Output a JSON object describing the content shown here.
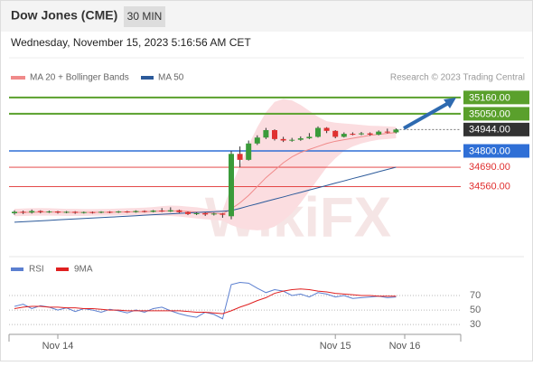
{
  "header": {
    "title": "Dow Jones (CME)",
    "timeframe": "30 MIN",
    "datetime": "Wednesday, November 15, 2023 5:16:56 AM CET"
  },
  "chart_data": [
    {
      "type": "candlestick",
      "credit": "Research © 2023 Trading Central",
      "watermark": "WikiFX",
      "up_color": "#3a9b3a",
      "down_color": "#e03030",
      "open": [
        34380,
        34390,
        34385,
        34395,
        34388,
        34392,
        34385,
        34390,
        34383,
        34388,
        34384,
        34390,
        34386,
        34392,
        34388,
        34395,
        34390,
        34398,
        34392,
        34400,
        34388,
        34375,
        34380,
        34372,
        34378,
        34360,
        34780,
        34740,
        34850,
        34890,
        34940,
        34880,
        34870,
        34875,
        34885,
        34895,
        34955,
        34935,
        34895,
        34915,
        34912,
        34918,
        34910,
        34930,
        34925,
        null
      ],
      "high": [
        34400,
        34398,
        34405,
        34400,
        34398,
        34396,
        34395,
        34394,
        34392,
        34392,
        34394,
        34394,
        34396,
        34396,
        34400,
        34400,
        34402,
        34415,
        34420,
        34405,
        34392,
        34386,
        34384,
        34384,
        34382,
        34800,
        34830,
        34870,
        34905,
        34955,
        34945,
        34895,
        34888,
        34898,
        34920,
        34965,
        34960,
        34940,
        34925,
        34925,
        34928,
        34925,
        34938,
        34950,
        34952,
        null
      ],
      "low": [
        34370,
        34375,
        34378,
        34380,
        34382,
        34378,
        34380,
        34376,
        34378,
        34378,
        34380,
        34380,
        34382,
        34383,
        34384,
        34385,
        34386,
        34388,
        34388,
        34382,
        34368,
        34368,
        34362,
        34365,
        34350,
        34340,
        34690,
        34735,
        34840,
        34880,
        34870,
        34860,
        34862,
        34868,
        34880,
        34890,
        34920,
        34885,
        34890,
        34905,
        34906,
        34902,
        34905,
        34918,
        34918,
        null
      ],
      "close": [
        34390,
        34385,
        34395,
        34388,
        34392,
        34385,
        34390,
        34383,
        34388,
        34384,
        34390,
        34386,
        34392,
        34388,
        34395,
        34390,
        34398,
        34392,
        34400,
        34388,
        34375,
        34380,
        34372,
        34378,
        34370,
        34780,
        34740,
        34850,
        34890,
        34940,
        34880,
        34870,
        34875,
        34885,
        34895,
        34955,
        34935,
        34895,
        34915,
        34912,
        34918,
        34910,
        34930,
        34925,
        34944,
        null
      ],
      "band_color": "#fbdde0",
      "band_upper": [
        34410,
        34412,
        34414,
        34415,
        34414,
        34412,
        34410,
        34410,
        34408,
        34408,
        34409,
        34410,
        34412,
        34414,
        34416,
        34418,
        34422,
        34428,
        34432,
        34430,
        34425,
        34420,
        34412,
        34405,
        34400,
        34560,
        34700,
        34840,
        34960,
        35060,
        35130,
        35150,
        35140,
        35110,
        35070,
        35030,
        35000,
        34990,
        34985,
        34980,
        34975,
        34970,
        34968,
        34965,
        34962,
        null
      ],
      "band_lower": [
        34360,
        34362,
        34363,
        34364,
        34364,
        34363,
        34362,
        34362,
        34362,
        34363,
        34364,
        34365,
        34366,
        34366,
        34367,
        34368,
        34366,
        34364,
        34362,
        34358,
        34352,
        34345,
        34340,
        34335,
        34330,
        34300,
        34280,
        34270,
        34265,
        34270,
        34290,
        34330,
        34380,
        34450,
        34530,
        34610,
        34690,
        34750,
        34800,
        34830,
        34850,
        34865,
        34875,
        34880,
        34885,
        null
      ],
      "series": [
        {
          "name": "MA 20 + Bollinger Bands",
          "color": "#f08a8a",
          "values": [
            34385,
            34386,
            34387,
            34388,
            34388,
            34388,
            34387,
            34386,
            34386,
            34386,
            34387,
            34387,
            34388,
            34389,
            34390,
            34391,
            34393,
            34395,
            34396,
            34395,
            34392,
            34388,
            34384,
            34380,
            34376,
            34410,
            34450,
            34500,
            34560,
            34620,
            34670,
            34720,
            34760,
            34790,
            34810,
            34830,
            34850,
            34865,
            34875,
            34885,
            34895,
            34905,
            34912,
            34918,
            34924,
            null
          ]
        },
        {
          "name": "MA 50",
          "color": "#2c5a9a",
          "values": [
            34320,
            34323,
            34326,
            34329,
            34332,
            34336,
            34339,
            34342,
            34345,
            34348,
            34351,
            34354,
            34357,
            34360,
            34363,
            34367,
            34370,
            34373,
            34376,
            34379,
            34382,
            34385,
            34388,
            34391,
            34394,
            34398,
            34413,
            34429,
            34444,
            34460,
            34475,
            34490,
            34506,
            34521,
            34537,
            34552,
            34567,
            34583,
            34598,
            34614,
            34629,
            34644,
            34660,
            34675,
            34690,
            null
          ]
        }
      ],
      "ylim": [
        34100,
        35220
      ],
      "levels": [
        {
          "value": 35160,
          "label": "35160.00",
          "color": "#5aa02c",
          "style": "solid-box"
        },
        {
          "value": 35050,
          "label": "35050.00",
          "color": "#5aa02c",
          "style": "solid-box"
        },
        {
          "value": 34944,
          "label": "34944.00",
          "color": "#333333",
          "style": "dotted-box"
        },
        {
          "value": 34800,
          "label": "34800.00",
          "color": "#2f6fd6",
          "style": "solid-box"
        },
        {
          "value": 34690,
          "label": "34690.00",
          "color": "#e03030",
          "style": "thin-text"
        },
        {
          "value": 34560,
          "label": "34560.00",
          "color": "#e03030",
          "style": "thin-text"
        }
      ]
    },
    {
      "type": "line",
      "categories": [
        null,
        null,
        null,
        null,
        null,
        "Nov 14",
        null,
        null,
        null,
        null,
        null,
        null,
        null,
        null,
        null,
        null,
        null,
        null,
        null,
        null,
        null,
        null,
        null,
        null,
        null,
        null,
        null,
        null,
        null,
        null,
        null,
        null,
        null,
        null,
        null,
        null,
        null,
        "Nov 15",
        null,
        null,
        null,
        null,
        null,
        null,
        null,
        "Nov 16"
      ],
      "series": [
        {
          "name": "RSI",
          "color": "#5b7fd0",
          "values": [
            55,
            58,
            52,
            56,
            54,
            50,
            53,
            48,
            52,
            50,
            47,
            51,
            49,
            46,
            50,
            47,
            52,
            54,
            49,
            45,
            42,
            40,
            47,
            44,
            38,
            85,
            88,
            87,
            80,
            74,
            78,
            76,
            70,
            72,
            68,
            74,
            72,
            68,
            70,
            66,
            67,
            68,
            69,
            67,
            68,
            null
          ]
        },
        {
          "name": "9MA",
          "color": "#e02020",
          "values": [
            52,
            54,
            55,
            55,
            54,
            54,
            53,
            53,
            52,
            52,
            51,
            50,
            50,
            49,
            49,
            49,
            49,
            49,
            49,
            49,
            48,
            47,
            47,
            46,
            45,
            49,
            54,
            58,
            63,
            67,
            73,
            76,
            78,
            79,
            78,
            76,
            75,
            73,
            72,
            71,
            70,
            70,
            69,
            69,
            69,
            null
          ]
        }
      ],
      "ylim": [
        19,
        116
      ],
      "yticks": [
        70,
        50,
        30
      ],
      "grid": true
    }
  ]
}
